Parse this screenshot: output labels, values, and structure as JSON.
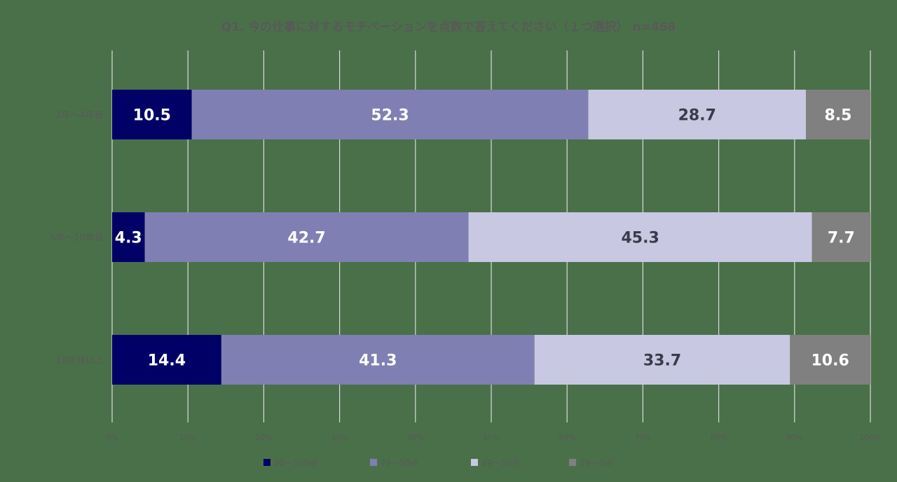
{
  "chart_data": {
    "type": "bar",
    "orientation": "horizontal",
    "stacked": true,
    "title": "Q1. 今の仕事に対するモチベーションを点数で答えてください（１つ選択） n=468",
    "categories": [
      "1年〜4年目",
      "5年〜10年目",
      "10年目以上"
    ],
    "series": [
      {
        "name": "80〜100点",
        "color": "#000066",
        "label_color": "#ffffff",
        "values": [
          10.5,
          4.3,
          14.4
        ]
      },
      {
        "name": "79〜50点",
        "color": "#7f7fb3",
        "label_color": "#ffffff",
        "values": [
          52.3,
          42.7,
          41.3
        ]
      },
      {
        "name": "49〜30点",
        "color": "#c8c8e2",
        "label_color": "#3a3a4a",
        "values": [
          28.7,
          45.3,
          33.7
        ]
      },
      {
        "name": "29〜0点",
        "color": "#808080",
        "label_color": "#ffffff",
        "values": [
          8.5,
          7.7,
          10.6
        ]
      }
    ],
    "xlim": [
      0,
      100
    ],
    "x_ticks": [
      "0%",
      "10%",
      "20%",
      "30%",
      "40%",
      "50%",
      "60%",
      "70%",
      "80%",
      "90%",
      "100%"
    ],
    "grid": true,
    "legend_position": "bottom",
    "colors": {
      "grid": "#d9d9d9",
      "text": "#595959"
    }
  }
}
